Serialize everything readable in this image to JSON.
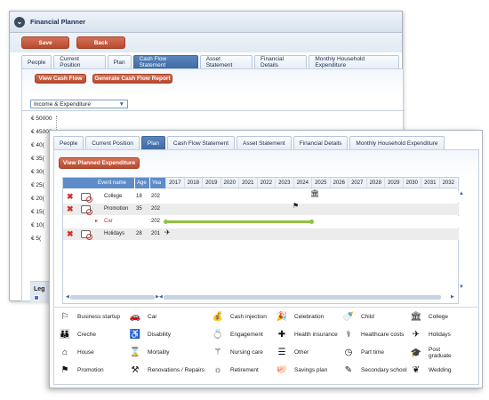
{
  "back": {
    "title": "Financial Planner",
    "save": "Save",
    "back": "Back",
    "tabs": [
      "People",
      "Current Position",
      "Plan",
      "Cash Flow Statement",
      "Asset Statement",
      "Financial Details",
      "Monthly Household Expenditure"
    ],
    "active_tab": "Cash Flow Statement",
    "view_cash_flow": "View Cash Flow",
    "generate_report": "Generate Cash Flow Report",
    "dropdown": "Income & Expenditure",
    "y_ticks": [
      "€ 50000",
      "€ 45000",
      "€ 40(",
      "€ 35(",
      "€ 30(",
      "€ 25(",
      "€ 20(",
      "€ 15(",
      "€ 10(",
      "€ 5("
    ],
    "legend_partial": "Leg"
  },
  "front": {
    "tabs": [
      "People",
      "Current Position",
      "Plan",
      "Cash Flow Statement",
      "Asset Statement",
      "Financial Details",
      "Monthly Household Expenditure"
    ],
    "active_tab": "Plan",
    "view_planned": "View Planned Expenditure",
    "grid": {
      "headers": {
        "event": "Event name",
        "age": "Age",
        "year": "Yea"
      },
      "years": [
        "2017",
        "2018",
        "2019",
        "2020",
        "2021",
        "2022",
        "2023",
        "2024",
        "2025",
        "2026",
        "2027",
        "2028",
        "2029",
        "2030",
        "2031",
        "2032"
      ],
      "rows": [
        {
          "name": "College",
          "age": "18",
          "year": "202"
        },
        {
          "name": "Promotion",
          "age": "35",
          "year": "202"
        },
        {
          "name": "Car",
          "age": "",
          "year": "202"
        },
        {
          "name": "Holidays",
          "age": "28",
          "year": "201"
        }
      ]
    },
    "icon_legend": [
      {
        "label": "Business startup",
        "icon": "business-startup-icon",
        "glyph": "⚐"
      },
      {
        "label": "Car",
        "icon": "car-icon",
        "glyph": "🚗"
      },
      {
        "label": "Cash injection",
        "icon": "cash-injection-icon",
        "glyph": "💰"
      },
      {
        "label": "Celebration",
        "icon": "celebration-icon",
        "glyph": "🎉"
      },
      {
        "label": "Child",
        "icon": "child-icon",
        "glyph": "🍼"
      },
      {
        "label": "College",
        "icon": "college-icon",
        "glyph": "🏛"
      },
      {
        "label": "Creche",
        "icon": "creche-icon",
        "glyph": "👪"
      },
      {
        "label": "Disability",
        "icon": "disability-icon",
        "glyph": "♿"
      },
      {
        "label": "Engagement",
        "icon": "engagement-icon",
        "glyph": "💍"
      },
      {
        "label": "Health insurance",
        "icon": "health-insurance-icon",
        "glyph": "✚"
      },
      {
        "label": "Healthcare costs",
        "icon": "healthcare-costs-icon",
        "glyph": "⚕"
      },
      {
        "label": "Holidays",
        "icon": "holidays-icon",
        "glyph": "✈"
      },
      {
        "label": "House",
        "icon": "house-icon",
        "glyph": "⌂"
      },
      {
        "label": "Mortality",
        "icon": "mortality-icon",
        "glyph": "⌛"
      },
      {
        "label": "Nursing care",
        "icon": "nursing-care-icon",
        "glyph": "⚚"
      },
      {
        "label": "Other",
        "icon": "other-icon",
        "glyph": "☰"
      },
      {
        "label": "Part time",
        "icon": "part-time-icon",
        "glyph": "◷"
      },
      {
        "label": "Post graduate",
        "icon": "post-graduate-icon",
        "glyph": "🎓"
      },
      {
        "label": "Promotion",
        "icon": "promotion-icon",
        "glyph": "⚑"
      },
      {
        "label": "Renovations / Repairs",
        "icon": "renovations-icon",
        "glyph": "⚒"
      },
      {
        "label": "Retirement",
        "icon": "retirement-icon",
        "glyph": "☼"
      },
      {
        "label": "Savings plan",
        "icon": "savings-plan-icon",
        "glyph": "🐖"
      },
      {
        "label": "Secondary school",
        "icon": "secondary-school-icon",
        "glyph": "✎"
      },
      {
        "label": "Wedding",
        "icon": "wedding-icon",
        "glyph": "❦"
      }
    ]
  },
  "colors": {
    "accent": "#b84a2e",
    "tab_active": "#4a76b0",
    "timeline": "#8ec33f"
  }
}
